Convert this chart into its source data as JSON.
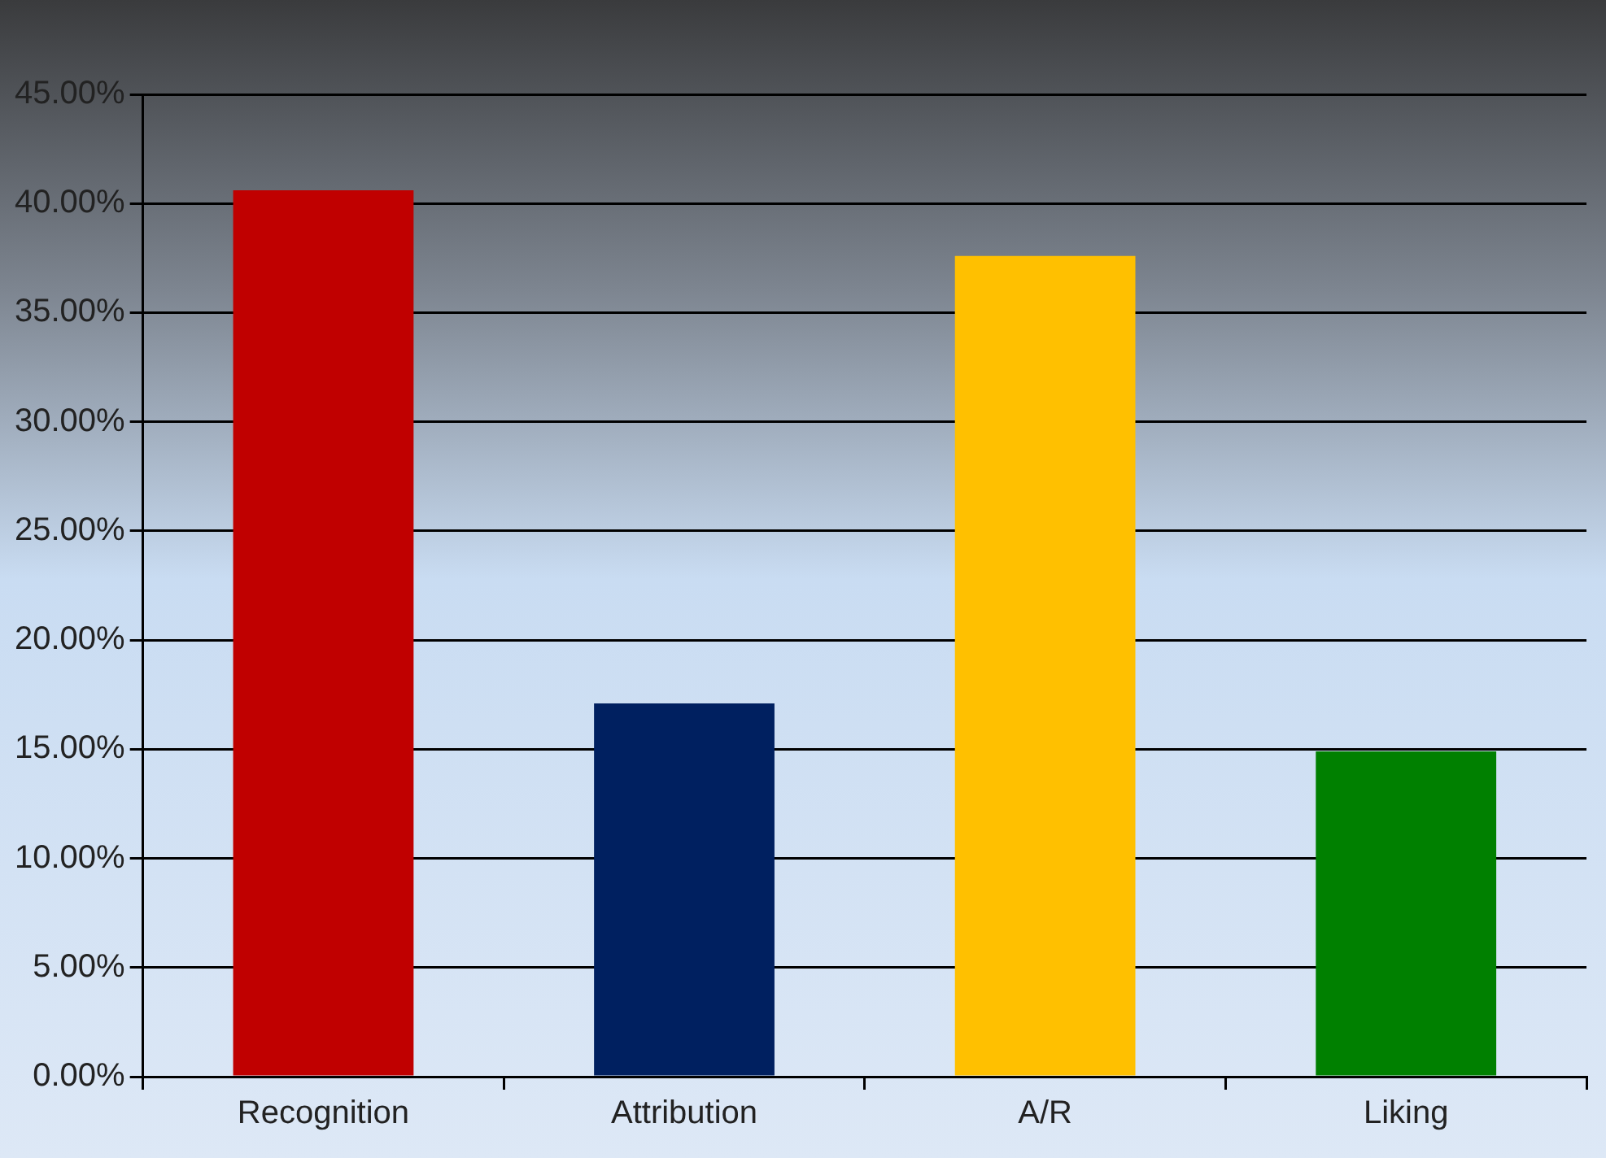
{
  "chart_data": {
    "type": "bar",
    "categories": [
      "Recognition",
      "Attribution",
      "A/R",
      "Liking"
    ],
    "values": [
      40.6,
      17.1,
      37.6,
      14.9
    ],
    "colors": [
      "#c00000",
      "#002060",
      "#ffc000",
      "#008000"
    ],
    "ylim": [
      0,
      45
    ],
    "yticks": [
      {
        "value": 0,
        "label": "0.00%"
      },
      {
        "value": 5,
        "label": "5.00%"
      },
      {
        "value": 10,
        "label": "10.00%"
      },
      {
        "value": 15,
        "label": "15.00%"
      },
      {
        "value": 20,
        "label": "20.00%"
      },
      {
        "value": 25,
        "label": "25.00%"
      },
      {
        "value": 30,
        "label": "30.00%"
      },
      {
        "value": 35,
        "label": "35.00%"
      },
      {
        "value": 40,
        "label": "40.00%"
      },
      {
        "value": 45,
        "label": "45.00%"
      }
    ],
    "grid": "y",
    "legend": false
  }
}
